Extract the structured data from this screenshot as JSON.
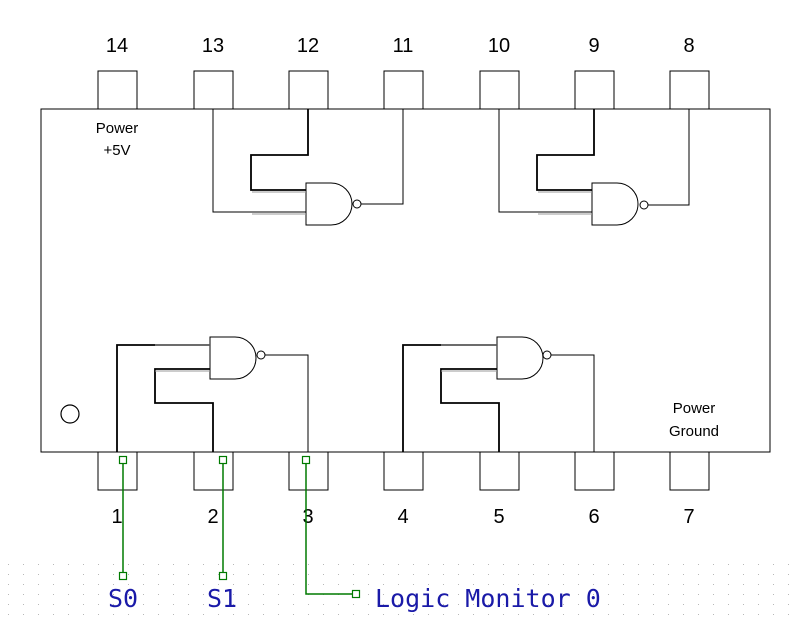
{
  "top_pins": [
    "14",
    "13",
    "12",
    "11",
    "10",
    "9",
    "8"
  ],
  "bottom_pins": [
    "1",
    "2",
    "3",
    "4",
    "5",
    "6",
    "7"
  ],
  "chip": {
    "power_label_line1": "Power",
    "power_label_line2": "+5V",
    "ground_label_line1": "Power",
    "ground_label_line2": "Ground"
  },
  "nets": {
    "s0": "S0",
    "s1": "S1",
    "monitor": "Logic Monitor 0"
  },
  "colors": {
    "wire": "#007a00",
    "net_label": "#1a1aa8",
    "outline": "#000000"
  }
}
